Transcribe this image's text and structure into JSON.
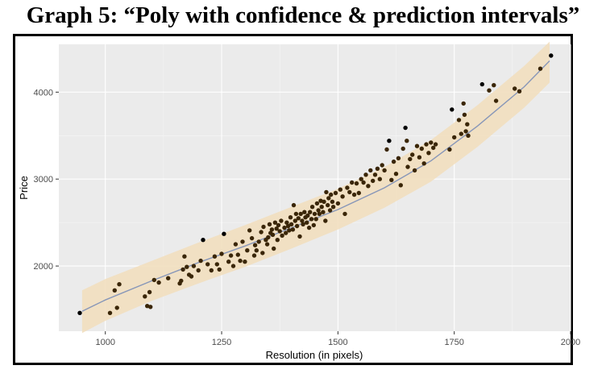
{
  "page_title": "Graph 5: “Poly with confidence & prediction intervals”",
  "chart_data": {
    "type": "scatter",
    "title": "",
    "xlabel": "Resolution (in pixels)",
    "ylabel": "Price",
    "xlim": [
      900,
      2000
    ],
    "ylim": [
      1250,
      4550
    ],
    "x_ticks": [
      1000,
      1250,
      1500,
      1750,
      2000
    ],
    "x_tick_labels": [
      "1000",
      "1250",
      "1500",
      "1750",
      "2000"
    ],
    "y_ticks": [
      2000,
      3000,
      4000
    ],
    "y_tick_labels": [
      "2000",
      "3000",
      "4000"
    ],
    "grid": true,
    "legend": "none",
    "colors": {
      "panel_background": "#ebebeb",
      "grid_major": "#ffffff",
      "grid_minor": "#f5f5f5",
      "prediction_band": "#f2dfbf",
      "fit_line": "#8796b8",
      "points": "#3a2608",
      "outlier_points": "#000000"
    },
    "fit": {
      "name": "",
      "type": "poly",
      "x": [
        950,
        1000,
        1100,
        1200,
        1300,
        1400,
        1500,
        1600,
        1700,
        1800,
        1900,
        1955
      ],
      "y": [
        1480,
        1610,
        1830,
        2040,
        2230,
        2440,
        2650,
        2900,
        3210,
        3610,
        4060,
        4360
      ]
    },
    "prediction_interval": {
      "x": [
        950,
        1000,
        1100,
        1200,
        1300,
        1400,
        1500,
        1600,
        1700,
        1800,
        1900,
        1955
      ],
      "lower": [
        1230,
        1370,
        1600,
        1800,
        1990,
        2200,
        2420,
        2670,
        2970,
        3370,
        3820,
        4110
      ],
      "upper": [
        1720,
        1850,
        2060,
        2270,
        2470,
        2680,
        2890,
        3140,
        3450,
        3850,
        4300,
        4580
      ]
    },
    "points": [
      {
        "x": 945,
        "y": 1460
      },
      {
        "x": 1010,
        "y": 1460
      },
      {
        "x": 1020,
        "y": 1720
      },
      {
        "x": 1025,
        "y": 1520
      },
      {
        "x": 1030,
        "y": 1790
      },
      {
        "x": 1085,
        "y": 1650
      },
      {
        "x": 1090,
        "y": 1540
      },
      {
        "x": 1095,
        "y": 1700
      },
      {
        "x": 1097,
        "y": 1530
      },
      {
        "x": 1105,
        "y": 1840
      },
      {
        "x": 1115,
        "y": 1810
      },
      {
        "x": 1135,
        "y": 1860
      },
      {
        "x": 1160,
        "y": 1800
      },
      {
        "x": 1163,
        "y": 1830
      },
      {
        "x": 1167,
        "y": 1960
      },
      {
        "x": 1170,
        "y": 2110
      },
      {
        "x": 1175,
        "y": 1990
      },
      {
        "x": 1180,
        "y": 1900
      },
      {
        "x": 1185,
        "y": 1880
      },
      {
        "x": 1190,
        "y": 2000
      },
      {
        "x": 1200,
        "y": 1950
      },
      {
        "x": 1205,
        "y": 2060
      },
      {
        "x": 1210,
        "y": 2300
      },
      {
        "x": 1220,
        "y": 2020
      },
      {
        "x": 1228,
        "y": 1950
      },
      {
        "x": 1235,
        "y": 2110
      },
      {
        "x": 1240,
        "y": 2020
      },
      {
        "x": 1245,
        "y": 1960
      },
      {
        "x": 1250,
        "y": 2140
      },
      {
        "x": 1255,
        "y": 2370
      },
      {
        "x": 1265,
        "y": 2050
      },
      {
        "x": 1270,
        "y": 2120
      },
      {
        "x": 1275,
        "y": 2000
      },
      {
        "x": 1280,
        "y": 2250
      },
      {
        "x": 1285,
        "y": 2130
      },
      {
        "x": 1290,
        "y": 2060
      },
      {
        "x": 1295,
        "y": 2280
      },
      {
        "x": 1300,
        "y": 2050
      },
      {
        "x": 1305,
        "y": 2180
      },
      {
        "x": 1310,
        "y": 2410
      },
      {
        "x": 1315,
        "y": 2320
      },
      {
        "x": 1320,
        "y": 2120
      },
      {
        "x": 1322,
        "y": 2240
      },
      {
        "x": 1325,
        "y": 2180
      },
      {
        "x": 1330,
        "y": 2280
      },
      {
        "x": 1335,
        "y": 2390
      },
      {
        "x": 1338,
        "y": 2150
      },
      {
        "x": 1340,
        "y": 2450
      },
      {
        "x": 1345,
        "y": 2300
      },
      {
        "x": 1348,
        "y": 2250
      },
      {
        "x": 1350,
        "y": 2330
      },
      {
        "x": 1353,
        "y": 2480
      },
      {
        "x": 1355,
        "y": 2380
      },
      {
        "x": 1358,
        "y": 2420
      },
      {
        "x": 1360,
        "y": 2360
      },
      {
        "x": 1362,
        "y": 2200
      },
      {
        "x": 1365,
        "y": 2500
      },
      {
        "x": 1368,
        "y": 2430
      },
      {
        "x": 1370,
        "y": 2300
      },
      {
        "x": 1372,
        "y": 2470
      },
      {
        "x": 1375,
        "y": 2400
      },
      {
        "x": 1378,
        "y": 2520
      },
      {
        "x": 1380,
        "y": 2350
      },
      {
        "x": 1385,
        "y": 2440
      },
      {
        "x": 1388,
        "y": 2380
      },
      {
        "x": 1390,
        "y": 2500
      },
      {
        "x": 1393,
        "y": 2460
      },
      {
        "x": 1395,
        "y": 2410
      },
      {
        "x": 1398,
        "y": 2560
      },
      {
        "x": 1400,
        "y": 2480
      },
      {
        "x": 1403,
        "y": 2420
      },
      {
        "x": 1405,
        "y": 2700
      },
      {
        "x": 1408,
        "y": 2520
      },
      {
        "x": 1410,
        "y": 2600
      },
      {
        "x": 1412,
        "y": 2460
      },
      {
        "x": 1415,
        "y": 2550
      },
      {
        "x": 1418,
        "y": 2340
      },
      {
        "x": 1420,
        "y": 2600
      },
      {
        "x": 1423,
        "y": 2520
      },
      {
        "x": 1425,
        "y": 2480
      },
      {
        "x": 1428,
        "y": 2620
      },
      {
        "x": 1430,
        "y": 2560
      },
      {
        "x": 1433,
        "y": 2500
      },
      {
        "x": 1435,
        "y": 2580
      },
      {
        "x": 1438,
        "y": 2440
      },
      {
        "x": 1440,
        "y": 2620
      },
      {
        "x": 1443,
        "y": 2540
      },
      {
        "x": 1445,
        "y": 2680
      },
      {
        "x": 1448,
        "y": 2470
      },
      {
        "x": 1450,
        "y": 2600
      },
      {
        "x": 1453,
        "y": 2540
      },
      {
        "x": 1455,
        "y": 2720
      },
      {
        "x": 1458,
        "y": 2640
      },
      {
        "x": 1460,
        "y": 2600
      },
      {
        "x": 1463,
        "y": 2750
      },
      {
        "x": 1465,
        "y": 2680
      },
      {
        "x": 1468,
        "y": 2620
      },
      {
        "x": 1470,
        "y": 2740
      },
      {
        "x": 1473,
        "y": 2520
      },
      {
        "x": 1475,
        "y": 2850
      },
      {
        "x": 1478,
        "y": 2700
      },
      {
        "x": 1480,
        "y": 2780
      },
      {
        "x": 1483,
        "y": 2640
      },
      {
        "x": 1485,
        "y": 2820
      },
      {
        "x": 1488,
        "y": 2740
      },
      {
        "x": 1490,
        "y": 2680
      },
      {
        "x": 1495,
        "y": 2840
      },
      {
        "x": 1500,
        "y": 2720
      },
      {
        "x": 1505,
        "y": 2880
      },
      {
        "x": 1510,
        "y": 2800
      },
      {
        "x": 1515,
        "y": 2600
      },
      {
        "x": 1520,
        "y": 2900
      },
      {
        "x": 1525,
        "y": 2850
      },
      {
        "x": 1530,
        "y": 2960
      },
      {
        "x": 1535,
        "y": 2820
      },
      {
        "x": 1540,
        "y": 2950
      },
      {
        "x": 1545,
        "y": 2840
      },
      {
        "x": 1550,
        "y": 3000
      },
      {
        "x": 1555,
        "y": 2960
      },
      {
        "x": 1560,
        "y": 3050
      },
      {
        "x": 1565,
        "y": 2920
      },
      {
        "x": 1570,
        "y": 3100
      },
      {
        "x": 1575,
        "y": 2980
      },
      {
        "x": 1580,
        "y": 3050
      },
      {
        "x": 1585,
        "y": 3120
      },
      {
        "x": 1590,
        "y": 3000
      },
      {
        "x": 1595,
        "y": 3160
      },
      {
        "x": 1600,
        "y": 3100
      },
      {
        "x": 1605,
        "y": 3340
      },
      {
        "x": 1610,
        "y": 3440
      },
      {
        "x": 1615,
        "y": 2990
      },
      {
        "x": 1620,
        "y": 3200
      },
      {
        "x": 1625,
        "y": 3060
      },
      {
        "x": 1630,
        "y": 3240
      },
      {
        "x": 1635,
        "y": 2930
      },
      {
        "x": 1640,
        "y": 3350
      },
      {
        "x": 1645,
        "y": 3590
      },
      {
        "x": 1648,
        "y": 3440
      },
      {
        "x": 1650,
        "y": 3140
      },
      {
        "x": 1655,
        "y": 3230
      },
      {
        "x": 1660,
        "y": 3280
      },
      {
        "x": 1665,
        "y": 3100
      },
      {
        "x": 1670,
        "y": 3380
      },
      {
        "x": 1675,
        "y": 3250
      },
      {
        "x": 1680,
        "y": 3350
      },
      {
        "x": 1685,
        "y": 3180
      },
      {
        "x": 1690,
        "y": 3400
      },
      {
        "x": 1695,
        "y": 3300
      },
      {
        "x": 1700,
        "y": 3420
      },
      {
        "x": 1705,
        "y": 3360
      },
      {
        "x": 1710,
        "y": 3400
      },
      {
        "x": 1740,
        "y": 3340
      },
      {
        "x": 1745,
        "y": 3800
      },
      {
        "x": 1750,
        "y": 3480
      },
      {
        "x": 1760,
        "y": 3680
      },
      {
        "x": 1765,
        "y": 3520
      },
      {
        "x": 1770,
        "y": 3870
      },
      {
        "x": 1772,
        "y": 3740
      },
      {
        "x": 1775,
        "y": 3550
      },
      {
        "x": 1778,
        "y": 3630
      },
      {
        "x": 1780,
        "y": 3500
      },
      {
        "x": 1810,
        "y": 4090
      },
      {
        "x": 1825,
        "y": 4020
      },
      {
        "x": 1835,
        "y": 4080
      },
      {
        "x": 1840,
        "y": 3900
      },
      {
        "x": 1880,
        "y": 4040
      },
      {
        "x": 1890,
        "y": 4010
      },
      {
        "x": 1935,
        "y": 4270
      },
      {
        "x": 1958,
        "y": 4420
      }
    ],
    "outliers": [
      {
        "x": 1210,
        "y": 2300
      },
      {
        "x": 1255,
        "y": 2370
      },
      {
        "x": 1610,
        "y": 3440
      },
      {
        "x": 1645,
        "y": 3590
      },
      {
        "x": 1745,
        "y": 3800
      },
      {
        "x": 1810,
        "y": 4090
      },
      {
        "x": 1958,
        "y": 4420
      },
      {
        "x": 945,
        "y": 1460
      }
    ]
  }
}
